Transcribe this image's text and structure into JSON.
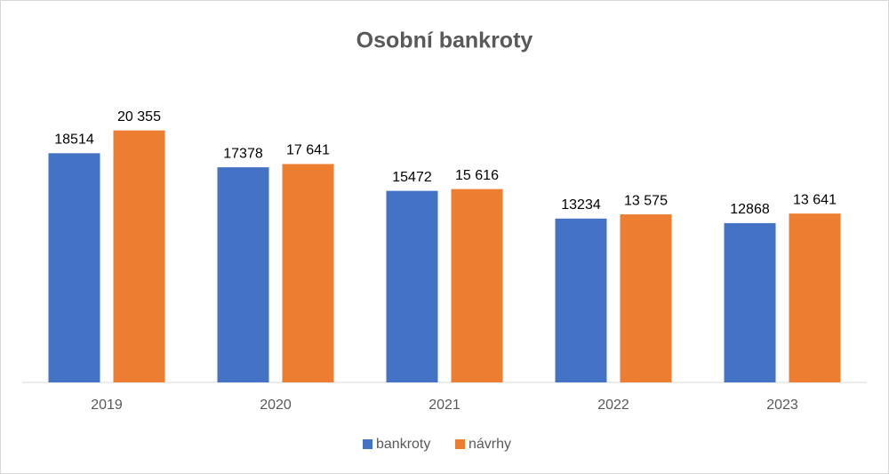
{
  "chart_data": {
    "type": "bar",
    "title": "Osobní bankroty",
    "categories": [
      "2019",
      "2020",
      "2021",
      "2022",
      "2023"
    ],
    "series": [
      {
        "name": "bankroty",
        "color": "#4472c4",
        "values": [
          18514,
          17378,
          15472,
          13234,
          12868
        ]
      },
      {
        "name": "návrhy",
        "color": "#ed7d31",
        "values": [
          20355,
          17641,
          15616,
          13575,
          13641
        ],
        "value_labels": [
          "20 355",
          "17 641",
          "15 616",
          "13 575",
          "13 641"
        ]
      }
    ],
    "ylim": [
      0,
      25000
    ],
    "legend": "bottom"
  }
}
